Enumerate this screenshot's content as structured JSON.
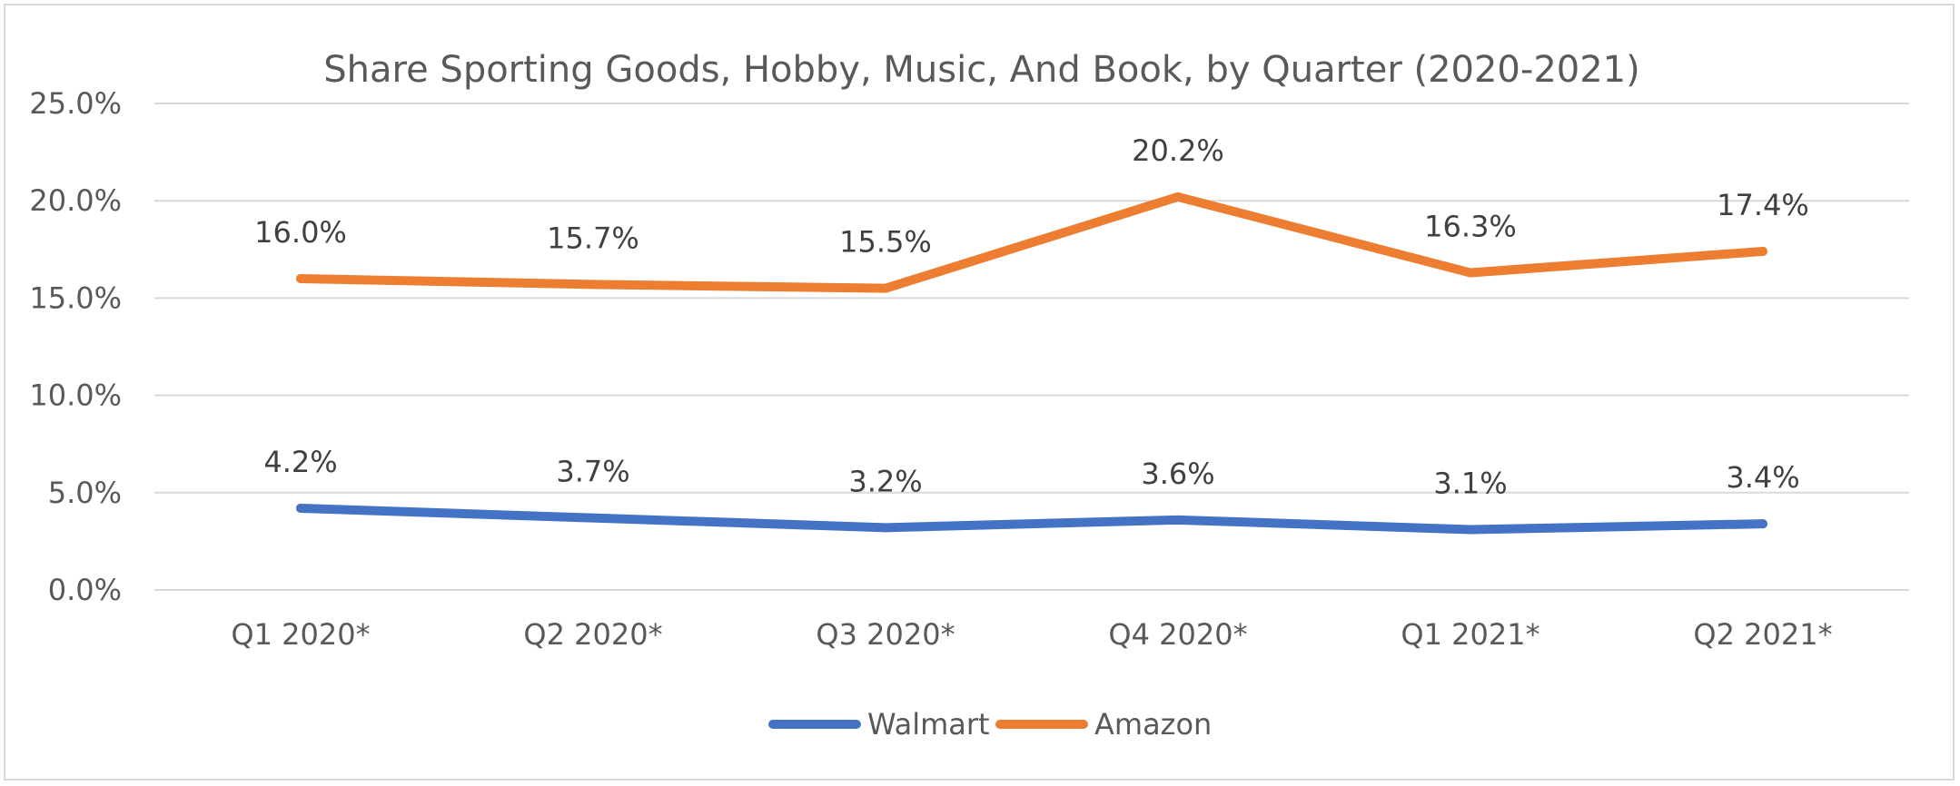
{
  "chart_data": {
    "type": "line",
    "title": "Share Sporting Goods, Hobby, Music, And Book, by Quarter (2020-2021)",
    "xlabel": "",
    "ylabel": "",
    "categories": [
      "Q1 2020*",
      "Q2 2020*",
      "Q3 2020*",
      "Q4 2020*",
      "Q1 2021*",
      "Q2 2021*"
    ],
    "ylim": [
      0,
      25
    ],
    "yticks": [
      "0.0%",
      "5.0%",
      "10.0%",
      "15.0%",
      "20.0%",
      "25.0%"
    ],
    "grid": true,
    "legend_position": "bottom",
    "series": [
      {
        "name": "Walmart",
        "color": "#4472c4",
        "values": [
          4.2,
          3.7,
          3.2,
          3.6,
          3.1,
          3.4
        ],
        "labels": [
          "4.2%",
          "3.7%",
          "3.2%",
          "3.6%",
          "3.1%",
          "3.4%"
        ]
      },
      {
        "name": "Amazon",
        "color": "#ed7d31",
        "values": [
          16.0,
          15.7,
          15.5,
          20.2,
          16.3,
          17.4
        ],
        "labels": [
          "16.0%",
          "15.7%",
          "15.5%",
          "20.2%",
          "16.3%",
          "17.4%"
        ]
      }
    ]
  }
}
